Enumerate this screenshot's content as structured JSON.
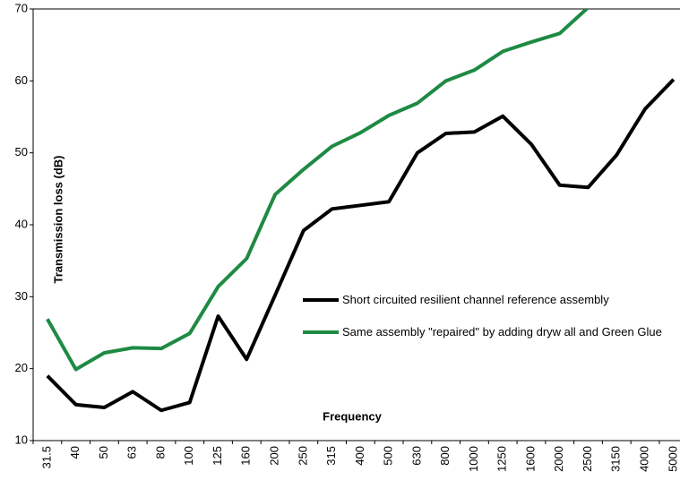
{
  "chart_data": {
    "type": "line",
    "y_label": "Transmission loss (dB)",
    "x_label": "Frequency",
    "categories": [
      "31.5",
      "40",
      "50",
      "63",
      "80",
      "100",
      "125",
      "160",
      "200",
      "250",
      "315",
      "400",
      "500",
      "630",
      "800",
      "1000",
      "1250",
      "1600",
      "2000",
      "2500",
      "3150",
      "4000",
      "5000"
    ],
    "series": [
      {
        "name": "Short circuited resilient channel reference assembly",
        "color": "#000000",
        "values": [
          19.0,
          15.0,
          14.6,
          16.8,
          14.2,
          15.3,
          27.3,
          21.3,
          30.2,
          39.2,
          42.2,
          42.7,
          43.2,
          50.0,
          52.7,
          52.9,
          55.1,
          51.2,
          45.5,
          45.2,
          49.7,
          56.1,
          60.2
        ]
      },
      {
        "name": "Same assembly \"repaired\" by adding dryw all and Green Glue",
        "color": "#1e8a43",
        "values": [
          26.9,
          19.9,
          22.2,
          22.9,
          22.8,
          24.9,
          31.4,
          35.3,
          44.2,
          47.7,
          50.9,
          52.8,
          55.2,
          56.9,
          60.0,
          61.5,
          64.1,
          65.4,
          66.6,
          70.2,
          null,
          null,
          null
        ]
      }
    ],
    "ylim": [
      10,
      70
    ],
    "yticks": [
      10,
      20,
      30,
      40,
      50,
      60,
      70
    ]
  }
}
